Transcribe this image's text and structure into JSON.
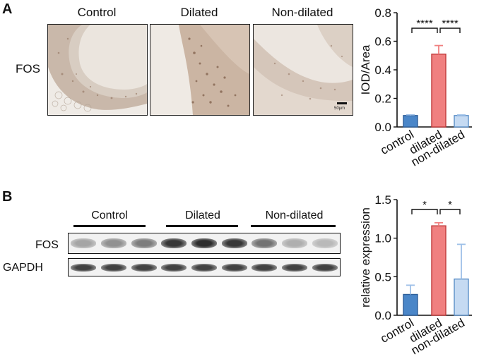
{
  "panels": {
    "a": {
      "letter": "A",
      "columns": [
        "Control",
        "Dilated",
        "Non-dilated"
      ],
      "row_label": "FOS",
      "scale_bar_label": "50μm"
    },
    "b": {
      "letter": "B",
      "groups": [
        "Control",
        "Dilated",
        "Non-dilated"
      ],
      "blot_rows": [
        "FOS",
        "GAPDH"
      ],
      "fos_band_intensity": [
        0.35,
        0.45,
        0.55,
        0.9,
        0.95,
        0.9,
        0.6,
        0.3,
        0.25
      ],
      "gapdh_band_intensity": [
        0.85,
        0.85,
        0.85,
        0.85,
        0.85,
        0.85,
        0.85,
        0.85,
        0.85
      ]
    }
  },
  "chart_data": [
    {
      "type": "bar",
      "categories": [
        "control",
        "dilated",
        "non-dilated"
      ],
      "values": [
        0.08,
        0.51,
        0.08
      ],
      "errors": [
        0.005,
        0.06,
        0.004
      ],
      "ylabel": "IOD/Area",
      "ylim": [
        0,
        0.8
      ],
      "yticks": [
        "0.0",
        "0.2",
        "0.4",
        "0.6",
        "0.8"
      ],
      "significance": [
        {
          "from": 0,
          "to": 1,
          "label": "****"
        },
        {
          "from": 1,
          "to": 2,
          "label": "****"
        }
      ],
      "colors": [
        "#4a86c8",
        "#f08080",
        "#c5daf2"
      ]
    },
    {
      "type": "bar",
      "categories": [
        "control",
        "dilated",
        "non-dilated"
      ],
      "values": [
        0.27,
        1.16,
        0.47
      ],
      "errors": [
        0.12,
        0.04,
        0.45
      ],
      "ylabel": "relative expression",
      "ylim": [
        0,
        1.5
      ],
      "yticks": [
        "0.0",
        "0.5",
        "1.0",
        "1.5"
      ],
      "significance": [
        {
          "from": 0,
          "to": 1,
          "label": "*"
        },
        {
          "from": 1,
          "to": 2,
          "label": "*"
        }
      ],
      "colors": [
        "#4a86c8",
        "#f08080",
        "#c5daf2"
      ]
    }
  ]
}
